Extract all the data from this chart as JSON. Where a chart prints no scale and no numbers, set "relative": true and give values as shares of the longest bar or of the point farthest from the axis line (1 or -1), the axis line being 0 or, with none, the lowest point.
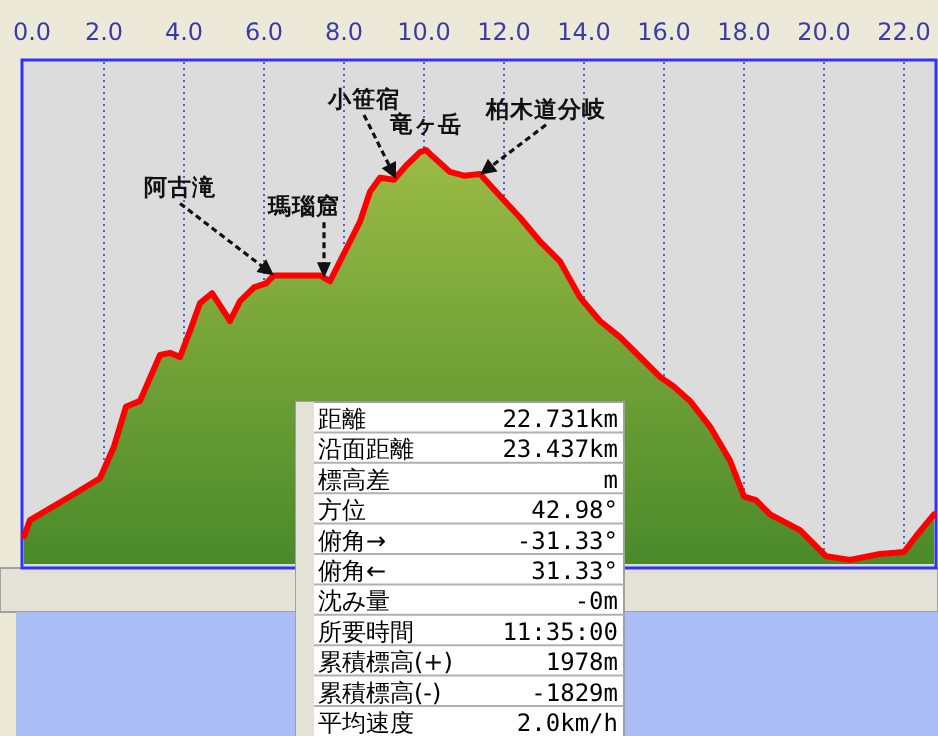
{
  "chart_data": {
    "type": "area",
    "relative": true,
    "x": [
      0,
      0.15,
      1.15,
      1.9,
      2.25,
      2.55,
      2.9,
      3.4,
      3.65,
      3.9,
      4.15,
      4.4,
      4.7,
      5.15,
      5.4,
      5.75,
      6.05,
      6.25,
      6.55,
      7.15,
      7.4,
      7.65,
      7.9,
      8.15,
      8.4,
      8.65,
      8.9,
      9.25,
      9.55,
      9.9,
      10.05,
      10.2,
      10.65,
      11.0,
      11.4,
      11.9,
      12.4,
      12.9,
      13.4,
      13.9,
      14.4,
      14.9,
      15.4,
      15.9,
      16.25,
      16.65,
      17.15,
      17.65,
      18.0,
      18.3,
      18.65,
      19.4,
      20.05,
      20.65,
      21.4,
      22.0,
      22.3,
      22.75
    ],
    "series": [
      {
        "color": "#ff0000",
        "values": [
          0.067,
          0.106,
          0.163,
          0.207,
          0.284,
          0.38,
          0.394,
          0.505,
          0.51,
          0.5,
          0.563,
          0.63,
          0.654,
          0.587,
          0.635,
          0.668,
          0.678,
          0.697,
          0.697,
          0.697,
          0.697,
          0.683,
          0.731,
          0.779,
          0.827,
          0.899,
          0.933,
          0.928,
          0.962,
          0.995,
          1.0,
          0.986,
          0.947,
          0.938,
          0.942,
          0.889,
          0.837,
          0.779,
          0.731,
          0.644,
          0.587,
          0.548,
          0.5,
          0.452,
          0.428,
          0.394,
          0.332,
          0.25,
          0.163,
          0.154,
          0.12,
          0.082,
          0.019,
          0.01,
          0.024,
          0.029,
          0.067,
          0.12
        ]
      }
    ],
    "xlim": [
      0,
      22.75
    ],
    "xticks": [
      {
        "value": 0,
        "label": "0.0"
      },
      {
        "value": 2,
        "label": "2.0"
      },
      {
        "value": 4,
        "label": "4.0"
      },
      {
        "value": 6,
        "label": "6.0"
      },
      {
        "value": 8,
        "label": "8.0"
      },
      {
        "value": 10,
        "label": "10.0"
      },
      {
        "value": 12,
        "label": "12.0"
      },
      {
        "value": 14,
        "label": "14.0"
      },
      {
        "value": 16,
        "label": "16.0"
      },
      {
        "value": 18,
        "label": "18.0"
      },
      {
        "value": 20,
        "label": "20.0"
      },
      {
        "value": 22,
        "label": "22.0"
      }
    ],
    "grid": "x",
    "annotations": [
      {
        "text": "阿古滝",
        "x": 6.25,
        "y": 0.697
      },
      {
        "text": "瑪瑙窟",
        "x": 7.5,
        "y": 0.69
      },
      {
        "text": "小笹宿",
        "x": 9.3,
        "y": 0.93
      },
      {
        "text": "竜ヶ岳",
        "x": 10.05,
        "y": 1.0
      },
      {
        "text": "柏木道分岐",
        "x": 11.4,
        "y": 0.94
      },
      "距離",
      "22.731km",
      "沿面距離",
      "23.437km",
      "標高差",
      "m",
      "方位",
      "42.98°",
      "俯角→",
      "-31.33°",
      "俯角←",
      "31.33°",
      "沈み量",
      "-0m",
      "所要時間",
      "11:35:00",
      "累積標高(+)",
      "1978m",
      "累積標高(-)",
      "-1829m",
      "平均速度",
      "2.0km/h"
    ]
  }
}
